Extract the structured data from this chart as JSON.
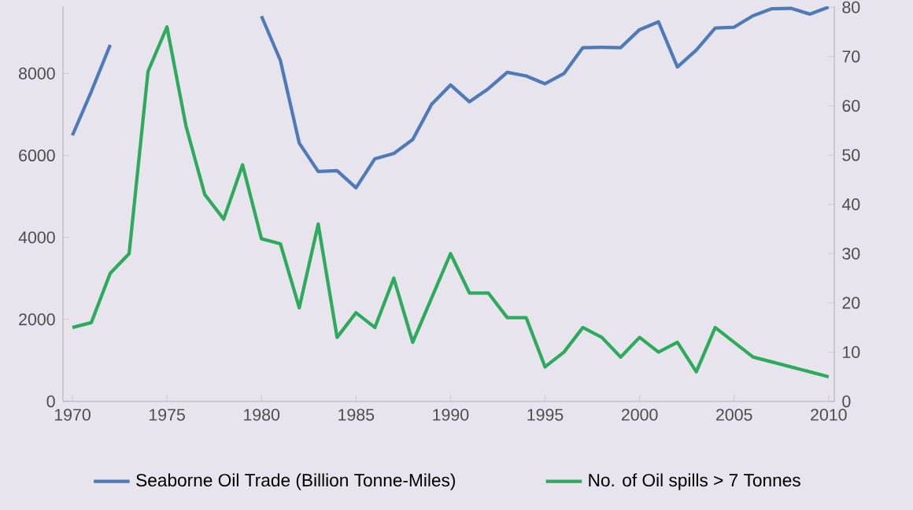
{
  "chart_data": {
    "type": "line",
    "x": [
      1970,
      1971,
      1972,
      1973,
      1974,
      1975,
      1976,
      1977,
      1978,
      1979,
      1980,
      1981,
      1982,
      1983,
      1984,
      1985,
      1986,
      1987,
      1988,
      1989,
      1990,
      1991,
      1992,
      1993,
      1994,
      1995,
      1996,
      1997,
      1998,
      1999,
      2000,
      2001,
      2002,
      2003,
      2004,
      2005,
      2006,
      2007,
      2008,
      2009,
      2010
    ],
    "series": [
      {
        "name": "Seaborne Oil Trade (Billion Tonne-Miles)",
        "color": "#4f7ab8",
        "axis": "y",
        "values": [
          6490,
          7560,
          8700,
          null,
          null,
          null,
          null,
          null,
          null,
          null,
          9400,
          8320,
          6300,
          5610,
          5630,
          5210,
          5920,
          6050,
          6390,
          7250,
          7720,
          7310,
          7630,
          8030,
          7940,
          7750,
          8000,
          8630,
          8640,
          8630,
          9070,
          9260,
          8160,
          8570,
          9110,
          9130,
          9410,
          9580,
          9590,
          9450,
          9620
        ]
      },
      {
        "name": "No. of Oil spills > 7 Tonnes",
        "color": "#2eaa5c",
        "axis": "y2",
        "values": [
          15,
          16,
          26,
          30,
          67,
          76,
          56,
          42,
          37,
          48,
          33,
          32,
          19,
          36,
          13,
          18,
          15,
          25,
          12,
          21,
          30,
          22,
          22,
          17,
          17,
          7,
          10,
          15,
          13,
          9,
          13,
          10,
          12,
          6,
          15,
          12,
          9,
          8,
          7,
          6,
          5
        ]
      }
    ],
    "xlim": [
      1969.5,
      2010.3
    ],
    "xticks": [
      1970,
      1975,
      1980,
      1985,
      1990,
      1995,
      2000,
      2005,
      2010
    ],
    "ylim": [
      0,
      9640
    ],
    "yticks": [
      0,
      2000,
      4000,
      6000,
      8000
    ],
    "y2lim": [
      0,
      80.2
    ],
    "y2ticks": [
      0,
      10,
      20,
      30,
      40,
      50,
      60,
      70,
      80
    ],
    "legend": "bottom"
  }
}
